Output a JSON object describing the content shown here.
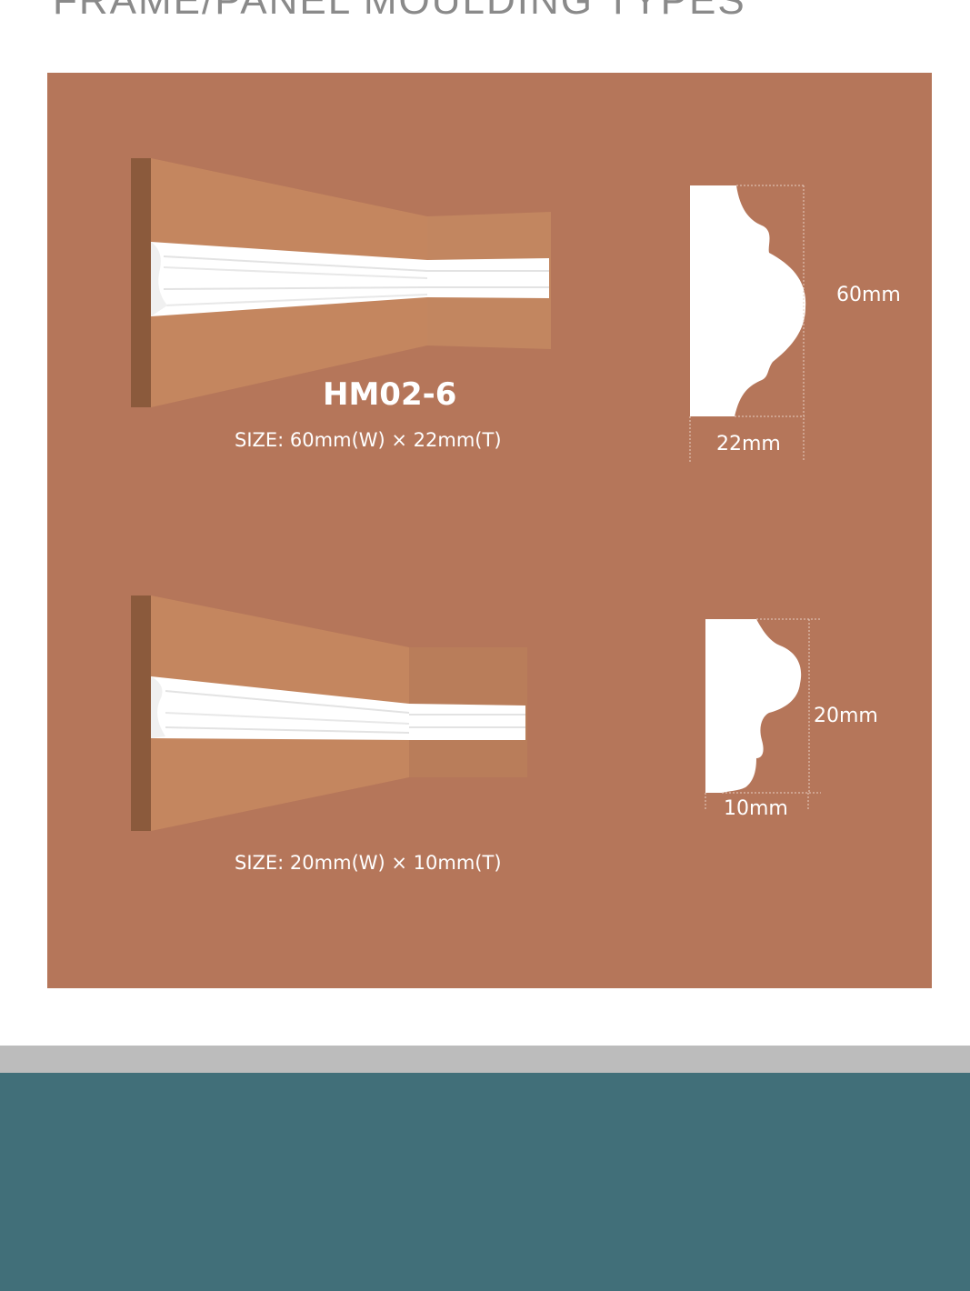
{
  "header": {
    "title": "FRAME/PANEL MOULDING TYPES"
  },
  "products": [
    {
      "code": "HM02-6",
      "size": "SIZE: 60mm(W) × 22mm(T)",
      "height_label": "60mm",
      "thickness_label": "22mm"
    },
    {
      "size": "SIZE: 20mm(W) × 10mm(T)",
      "height_label": "20mm",
      "thickness_label": "10mm"
    }
  ],
  "colors": {
    "panel": "#b5765a",
    "wall_light": "#c4865f",
    "wall_dark": "#b97d5a",
    "wall_edge": "#8b5a3c",
    "moulding": "#ffffff",
    "divider": "#bcbcbc",
    "footer": "#416f79"
  }
}
